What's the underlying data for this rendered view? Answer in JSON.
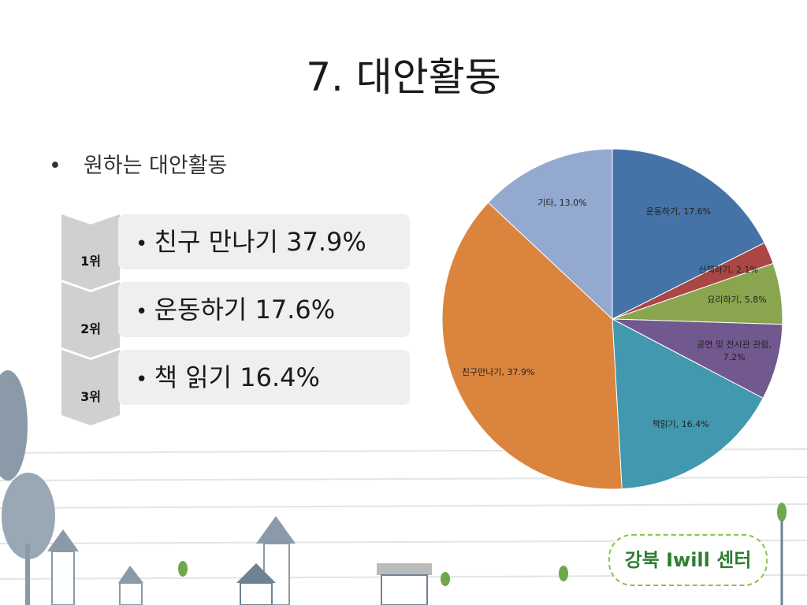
{
  "title": "7. 대안활동",
  "bullet": "원하는 대안활동",
  "ranking": [
    {
      "rank": "1위",
      "text": "친구 만나기 37.9%"
    },
    {
      "rank": "2위",
      "text": "운동하기 17.6%"
    },
    {
      "rank": "3위",
      "text": "책 읽기 16.4%"
    }
  ],
  "logo": "강북 Iwill 센터",
  "chart_data": {
    "type": "pie",
    "values": [
      17.6,
      2.1,
      5.8,
      7.2,
      16.4,
      37.9,
      13.0
    ],
    "value_labels": [
      "운동하기, 17.6%",
      "산책하기, 2.1%",
      "요리하기, 5.8%",
      "공연 및 전시관 관람, 7.2%",
      "책읽기, 16.4%",
      "친구만나기, 37.9%",
      "기타, 13.0%"
    ],
    "colors": [
      "#4572a7",
      "#aa4643",
      "#89a54e",
      "#71588f",
      "#4198af",
      "#db843d",
      "#93a9cf"
    ]
  }
}
